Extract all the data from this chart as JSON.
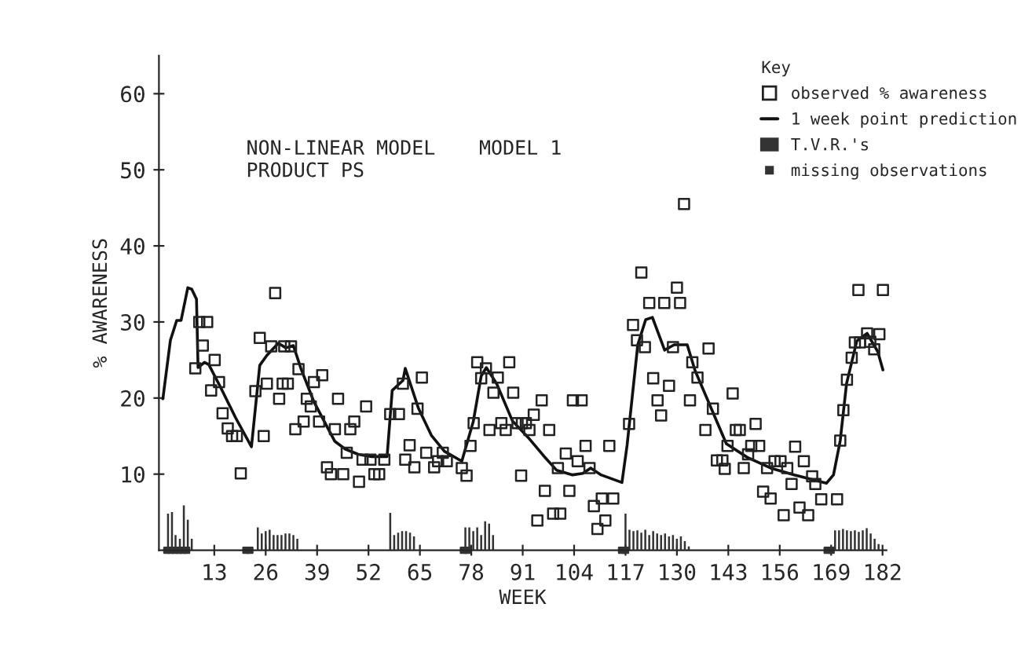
{
  "chart_data": {
    "type": "scatter",
    "title": "NON-LINEAR MODEL",
    "subtitle": "PRODUCT PS",
    "annotations": [
      "MODEL 1"
    ],
    "xlabel": "WEEK",
    "ylabel": "% AWARENESS",
    "legend_title": "Key",
    "legend": "top right",
    "xlim": [
      -1,
      183
    ],
    "xticks": [
      13,
      26,
      39,
      52,
      65,
      78,
      91,
      104,
      117,
      130,
      143,
      156,
      169,
      182
    ],
    "ylim": [
      0,
      65
    ],
    "yticks": [
      10,
      20,
      30,
      40,
      50,
      60
    ],
    "grid": false,
    "series": [
      {
        "name": "observed % awareness",
        "marker": "square",
        "color": "#222222",
        "x": [
          8.2,
          9.2,
          11.2,
          10.1,
          12.2,
          13.1,
          14.2,
          15.1,
          16.4,
          17.5,
          18.7,
          19.7,
          23.4,
          24.5,
          25.5,
          26.3,
          27.4,
          28.4,
          29.4,
          30.3,
          31.6,
          30.7,
          32.4,
          33.5,
          34.3,
          35.6,
          36.4,
          37.4,
          38.2,
          39.5,
          40.3,
          41.5,
          42.5,
          43.5,
          44.3,
          45.6,
          46.5,
          47.4,
          48.4,
          49.6,
          50.5,
          51.4,
          52.5,
          53.5,
          54.7,
          56,
          57.5,
          59.7,
          60.7,
          61.3,
          62.4,
          63.6,
          64.4,
          65.5,
          66.6,
          68.6,
          69.6,
          70.8,
          71.8,
          75.6,
          76.8,
          77.8,
          78.6,
          79.5,
          80.5,
          81.7,
          82.6,
          83.6,
          84.7,
          85.6,
          86.7,
          87.6,
          88.6,
          89.7,
          90.8,
          90.6,
          91.8,
          92.7,
          93.8,
          94.7,
          95.8,
          96.6,
          97.7,
          98.7,
          100.5,
          99.9,
          101.9,
          102.8,
          103.7,
          105.9,
          104.9,
          106.9,
          107.9,
          109,
          109.9,
          111,
          111.9,
          112.9,
          113.9,
          117.9,
          118.9,
          119.9,
          121,
          121.9,
          123,
          124,
          125.1,
          126,
          126.8,
          128,
          129,
          130,
          130.8,
          131.8,
          133.3,
          133.9,
          135.2,
          137.2,
          138,
          139.1,
          140.1,
          141.5,
          142.1,
          142.8,
          144.1,
          144.9,
          145.9,
          146.9,
          148,
          148.8,
          150.8,
          149.9,
          151.8,
          152.8,
          153.7,
          154.7,
          156.2,
          157,
          157.9,
          159,
          159.9,
          161,
          162.1,
          163.2,
          164.2,
          165,
          166.5,
          170.5,
          171.3,
          172.1,
          173,
          174.2,
          175,
          176.3,
          175.9,
          182.1,
          178.1,
          178.9,
          179.9,
          181.2
        ],
        "values": [
          23.9,
          30,
          30,
          26.9,
          21,
          25,
          22.1,
          18,
          16,
          15,
          15,
          10.1,
          20.9,
          27.9,
          15,
          21.9,
          26.8,
          33.8,
          19.9,
          21.9,
          21.9,
          26.8,
          26.8,
          15.9,
          23.8,
          16.9,
          19.9,
          18.9,
          22.1,
          16.9,
          23,
          10.9,
          10,
          15.9,
          19.9,
          10,
          12.8,
          15.9,
          16.9,
          9,
          11.9,
          18.9,
          11.9,
          10,
          10,
          11.9,
          17.9,
          17.9,
          21.9,
          11.9,
          13.8,
          10.9,
          18.6,
          22.7,
          12.8,
          10.9,
          11.7,
          12.8,
          11.7,
          10.8,
          9.8,
          13.7,
          16.7,
          24.7,
          22.6,
          23.9,
          15.8,
          20.7,
          22.7,
          16.7,
          15.8,
          24.7,
          20.7,
          16.7,
          16.7,
          9.8,
          16.7,
          15.8,
          17.8,
          3.9,
          19.7,
          7.8,
          15.8,
          4.8,
          4.8,
          10.8,
          12.7,
          7.8,
          19.7,
          19.7,
          11.7,
          13.7,
          10.8,
          5.8,
          2.8,
          6.8,
          3.9,
          13.7,
          6.8,
          16.6,
          29.6,
          27.6,
          36.5,
          26.7,
          32.5,
          22.6,
          19.7,
          17.7,
          32.5,
          21.6,
          26.7,
          34.5,
          32.5,
          45.5,
          19.7,
          24.7,
          22.7,
          15.8,
          26.5,
          18.6,
          11.8,
          11.8,
          10.7,
          13.7,
          20.6,
          15.8,
          15.8,
          10.8,
          12.6,
          13.7,
          13.7,
          16.6,
          7.7,
          10.8,
          6.8,
          11.7,
          11.7,
          4.6,
          10.8,
          8.7,
          13.6,
          5.6,
          11.7,
          4.6,
          9.7,
          8.7,
          6.7,
          6.7,
          14.4,
          18.4,
          22.4,
          25.3,
          27.3,
          27.3,
          34.2,
          34.2,
          28.5,
          27.4,
          26.4,
          28.4
        ]
      },
      {
        "name": "1 week point prediction",
        "type": "line",
        "line_style": "solid",
        "color": "#111111",
        "x": [
          0,
          1.9,
          3.5,
          4.6,
          6.3,
          7.3,
          8.5,
          8.9,
          10.5,
          11.6,
          14.5,
          18.4,
          22.4,
          24.5,
          26.3,
          29.2,
          31.1,
          33,
          34.9,
          38.2,
          43.5,
          46.1,
          49.4,
          52.8,
          56.7,
          58,
          60.7,
          61.3,
          64.6,
          67.9,
          71.2,
          75.6,
          78.5,
          80.5,
          81.8,
          84.4,
          88.4,
          92.4,
          96.3,
          99.6,
          103.6,
          106.2,
          108.2,
          110.8,
          116.1,
          117.4,
          120.1,
          122.1,
          123.8,
          126.9,
          129.3,
          132.6,
          134.6,
          142.5,
          147.8,
          153.7,
          159.7,
          167.8,
          169.6,
          171.3,
          172.9,
          175.5,
          178.1,
          180.8,
          182.1
        ],
        "values": [
          19.9,
          27.6,
          30.2,
          30.2,
          34.5,
          34.3,
          33,
          24,
          24.7,
          24.4,
          21.5,
          17.4,
          13.6,
          24.3,
          25.6,
          27.2,
          26.6,
          26.9,
          23.9,
          19.5,
          14.3,
          13.3,
          12.6,
          12.3,
          12.3,
          21,
          22.3,
          23.9,
          18.7,
          15.1,
          13,
          11.7,
          16.9,
          22.9,
          24,
          21.9,
          17,
          14.8,
          12.4,
          10.5,
          9.9,
          10.1,
          10.8,
          9.9,
          8.9,
          13.8,
          27,
          30.3,
          30.6,
          26.3,
          27,
          27,
          23.6,
          14,
          12.2,
          10.8,
          9.9,
          8.8,
          9.9,
          14.4,
          21.9,
          27.5,
          28.5,
          26.1,
          23.7
        ]
      },
      {
        "name": "T.V.R.'s",
        "type": "bar",
        "color": "#333333",
        "x": [
          1.3,
          2.3,
          3.2,
          4.3,
          5.3,
          6.3,
          7.3,
          24,
          25,
          26,
          27,
          28,
          29,
          30,
          31,
          32,
          33,
          34,
          57.5,
          58.5,
          59.5,
          60.5,
          61.5,
          62.5,
          63.5,
          76.5,
          77.5,
          78.5,
          79.5,
          80.5,
          81.5,
          82.5,
          83.5,
          117,
          118,
          119,
          120,
          121,
          122,
          123,
          124,
          125,
          126,
          127,
          128,
          129,
          130,
          131,
          132,
          133,
          170,
          171,
          172,
          173,
          174,
          175,
          176,
          177,
          178,
          179,
          180,
          181
        ],
        "values": [
          4.8,
          5,
          2,
          1.5,
          5.9,
          4,
          1.5,
          3,
          2.2,
          2.5,
          2.7,
          2,
          2,
          2,
          2.2,
          2.2,
          2,
          1.5,
          4.9,
          2,
          2.3,
          2.5,
          2.5,
          2.3,
          1.8,
          3,
          3,
          2.5,
          3,
          2,
          3.8,
          3.5,
          2,
          4.8,
          2.7,
          2.5,
          2.6,
          2.3,
          2.7,
          2,
          2.5,
          2.2,
          2,
          2.2,
          1.8,
          2,
          1.5,
          1.8,
          1.2,
          0.5,
          2.6,
          2.6,
          2.8,
          2.6,
          2.5,
          2.6,
          2.4,
          2.6,
          2.9,
          2.2,
          1.5,
          0.8
        ]
      },
      {
        "name": "missing observations",
        "type": "scatter",
        "marker": "square",
        "color": "#333333",
        "x": [
          1,
          2,
          3,
          4,
          5,
          6,
          21,
          22,
          76,
          77,
          116,
          117,
          168,
          169
        ],
        "values": [
          0,
          0,
          0,
          0,
          0,
          0,
          0,
          0,
          0,
          0,
          0,
          0,
          0,
          0
        ]
      }
    ]
  }
}
